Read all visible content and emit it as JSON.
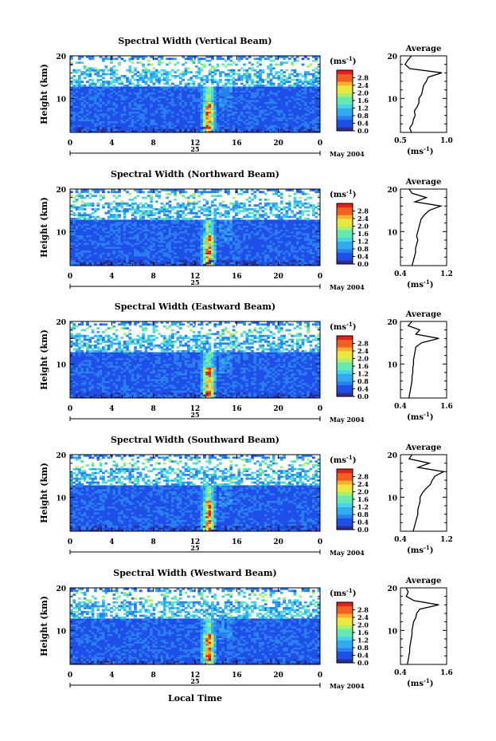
{
  "figure": {
    "xlabel": "Local Time",
    "date_label": "May 2004",
    "day_label": "25",
    "cbar_unit": "(ms",
    "cbar_unit_sup": "-1",
    "cbar_unit_close": ")",
    "avg_title": "Average",
    "avg_xlabel": "(ms",
    "avg_xlabel_sup": "-1",
    "avg_xlabel_close": ")"
  },
  "chart_data": [
    {
      "type": "heatmap",
      "title": "Spectral Width (Vertical Beam)",
      "ylabel": "Height (km)",
      "xlim": [
        0,
        24
      ],
      "ylim": [
        2,
        20
      ],
      "xticks": [
        "0",
        "4",
        "8",
        "12",
        "16",
        "20",
        "0"
      ],
      "yticks": [
        "10",
        "20"
      ],
      "colorbar": {
        "ticks": [
          "0.0",
          "0.4",
          "0.8",
          "1.2",
          "1.6",
          "2.0",
          "2.4",
          "2.8"
        ],
        "range": [
          0,
          3.2
        ]
      },
      "average_profile": {
        "xlim": [
          0.5,
          1.0
        ],
        "xticks": [
          "0.5",
          "1.0"
        ],
        "yticks": [
          "10",
          "20"
        ],
        "height": [
          2,
          3,
          4,
          5,
          6,
          7,
          8,
          9,
          10,
          11,
          12,
          13,
          14,
          15,
          16,
          17,
          18,
          19,
          20
        ],
        "value": [
          0.62,
          0.6,
          0.63,
          0.64,
          0.66,
          0.65,
          0.68,
          0.7,
          0.7,
          0.73,
          0.74,
          0.75,
          0.78,
          0.8,
          0.95,
          0.6,
          0.55,
          0.58,
          0.62
        ]
      }
    },
    {
      "type": "heatmap",
      "title": "Spectral Width (Northward Beam)",
      "ylabel": "Height (km)",
      "xlim": [
        0,
        24
      ],
      "ylim": [
        2,
        20
      ],
      "xticks": [
        "0",
        "4",
        "8",
        "12",
        "16",
        "20",
        "0"
      ],
      "yticks": [
        "10",
        "20"
      ],
      "colorbar": {
        "ticks": [
          "0.0",
          "0.4",
          "0.8",
          "1.2",
          "1.6",
          "2.0",
          "2.4",
          "2.8"
        ],
        "range": [
          0,
          3.2
        ]
      },
      "average_profile": {
        "xlim": [
          0.4,
          1.2
        ],
        "xticks": [
          "0.4",
          "1.2"
        ],
        "yticks": [
          "10",
          "20"
        ],
        "height": [
          2,
          3,
          4,
          5,
          6,
          7,
          8,
          9,
          10,
          11,
          12,
          13,
          14,
          15,
          16,
          17,
          18,
          19,
          20
        ],
        "value": [
          0.6,
          0.62,
          0.64,
          0.66,
          0.66,
          0.68,
          0.7,
          0.68,
          0.7,
          0.72,
          0.74,
          0.76,
          0.82,
          0.9,
          1.1,
          0.65,
          0.85,
          0.6,
          0.55
        ]
      }
    },
    {
      "type": "heatmap",
      "title": "Spectral Width (Eastward Beam)",
      "ylabel": "Height (km)",
      "xlim": [
        0,
        24
      ],
      "ylim": [
        2,
        20
      ],
      "xticks": [
        "0",
        "4",
        "8",
        "12",
        "16",
        "20",
        "0"
      ],
      "yticks": [
        "10",
        "20"
      ],
      "colorbar": {
        "ticks": [
          "0.0",
          "0.4",
          "0.8",
          "1.2",
          "1.6",
          "2.0",
          "2.4",
          "2.8"
        ],
        "range": [
          0,
          3.2
        ]
      },
      "average_profile": {
        "xlim": [
          0.4,
          1.6
        ],
        "xticks": [
          "0.4",
          "1.6"
        ],
        "yticks": [
          "10",
          "20"
        ],
        "height": [
          2,
          3,
          4,
          5,
          6,
          7,
          8,
          9,
          10,
          11,
          12,
          13,
          14,
          15,
          16,
          17,
          18,
          19,
          20
        ],
        "value": [
          0.62,
          0.64,
          0.66,
          0.68,
          0.7,
          0.7,
          0.72,
          0.72,
          0.74,
          0.74,
          0.76,
          0.78,
          0.8,
          0.95,
          1.4,
          0.8,
          0.9,
          0.6,
          0.7
        ]
      }
    },
    {
      "type": "heatmap",
      "title": "Spectral Width (Southward Beam)",
      "ylabel": "Height (km)",
      "xlim": [
        0,
        24
      ],
      "ylim": [
        2,
        20
      ],
      "xticks": [
        "0",
        "4",
        "8",
        "12",
        "16",
        "20",
        "0"
      ],
      "yticks": [
        "10",
        "20"
      ],
      "colorbar": {
        "ticks": [
          "0.0",
          "0.4",
          "0.8",
          "1.2",
          "1.6",
          "2.0",
          "2.4",
          "2.8"
        ],
        "range": [
          0,
          3.2
        ]
      },
      "average_profile": {
        "xlim": [
          0.4,
          1.2
        ],
        "xticks": [
          "0.4",
          "1.2"
        ],
        "yticks": [
          "10",
          "20"
        ],
        "height": [
          2,
          3,
          4,
          5,
          6,
          7,
          8,
          9,
          10,
          11,
          12,
          13,
          14,
          15,
          16,
          17,
          18,
          19,
          20
        ],
        "value": [
          0.62,
          0.64,
          0.66,
          0.68,
          0.7,
          0.7,
          0.72,
          0.74,
          0.74,
          0.78,
          0.84,
          0.92,
          0.95,
          1.0,
          1.15,
          0.7,
          0.9,
          0.55,
          0.6
        ]
      }
    },
    {
      "type": "heatmap",
      "title": "Spectral Width (Westward Beam)",
      "ylabel": "Height (km)",
      "xlim": [
        0,
        24
      ],
      "ylim": [
        2,
        20
      ],
      "xticks": [
        "0",
        "4",
        "8",
        "12",
        "16",
        "20",
        "0"
      ],
      "yticks": [
        "10",
        "20"
      ],
      "colorbar": {
        "ticks": [
          "0.0",
          "0.4",
          "0.8",
          "1.2",
          "1.6",
          "2.0",
          "2.4",
          "2.8"
        ],
        "range": [
          0,
          3.2
        ]
      },
      "average_profile": {
        "xlim": [
          0.4,
          1.6
        ],
        "xticks": [
          "0.4",
          "1.6"
        ],
        "yticks": [
          "10",
          "20"
        ],
        "height": [
          2,
          3,
          4,
          5,
          6,
          7,
          8,
          9,
          10,
          11,
          12,
          13,
          14,
          15,
          16,
          17,
          18,
          19,
          20
        ],
        "value": [
          0.58,
          0.6,
          0.62,
          0.64,
          0.64,
          0.66,
          0.68,
          0.7,
          0.7,
          0.72,
          0.74,
          0.8,
          0.82,
          0.9,
          1.4,
          0.75,
          0.55,
          0.6,
          0.55
        ]
      }
    }
  ],
  "colors": {
    "scale": [
      "#2b2f8f",
      "#1f4fe8",
      "#2a7ff0",
      "#33aaf0",
      "#44d6e8",
      "#66e8b0",
      "#a8f070",
      "#e8e840",
      "#f8b030",
      "#f06020",
      "#e02020"
    ]
  }
}
